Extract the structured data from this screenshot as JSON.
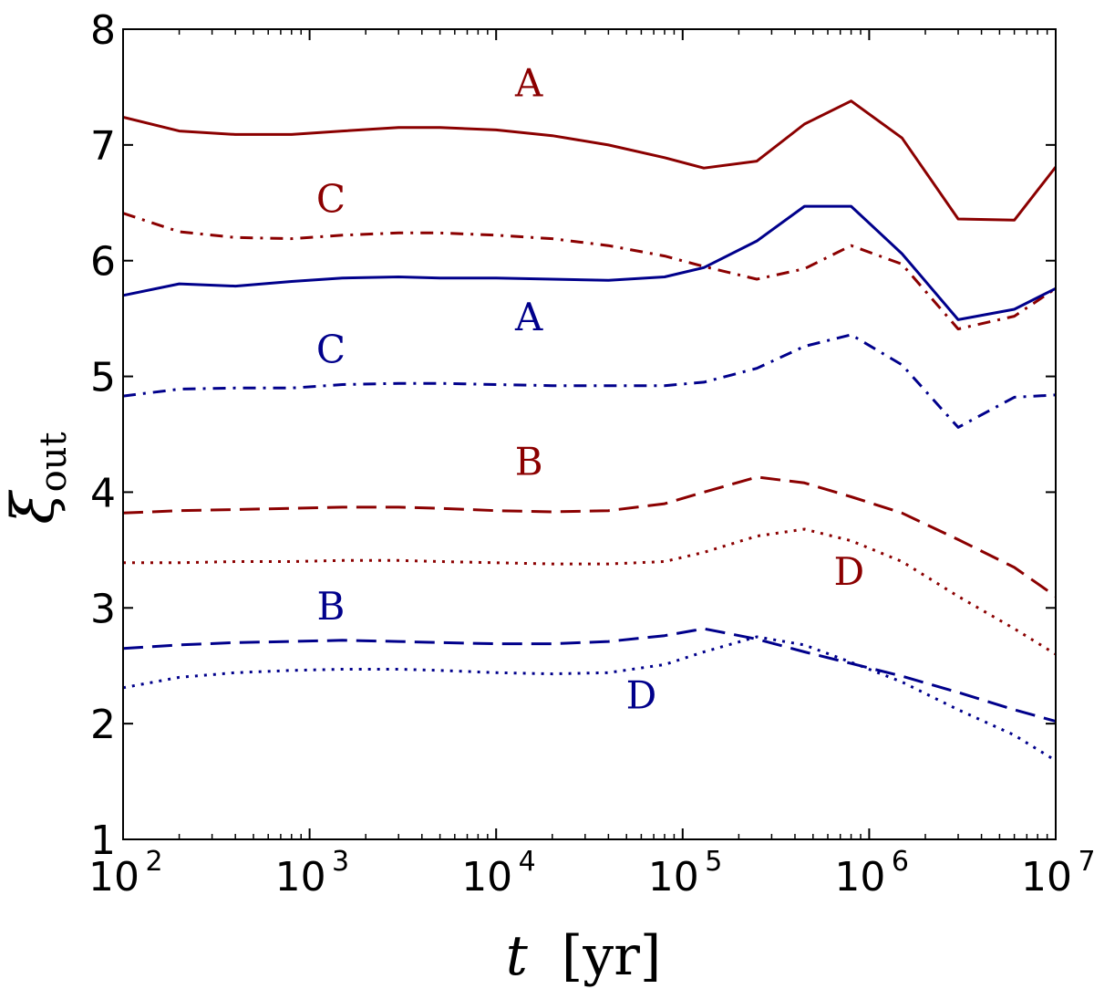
{
  "chart_data": {
    "type": "line",
    "xscale": "log",
    "xlim": [
      100,
      10000000
    ],
    "ylim": [
      1,
      8
    ],
    "xlabel": "t [yr]",
    "xlabel_var": "t",
    "xlabel_unit": "[yr]",
    "ylabel": "ξ_out",
    "ylabel_symbol": "ξ",
    "ylabel_sub": "out",
    "x_ticks": [
      {
        "value": 100,
        "base": "10",
        "exp": "2"
      },
      {
        "value": 1000,
        "base": "10",
        "exp": "3"
      },
      {
        "value": 10000,
        "base": "10",
        "exp": "4"
      },
      {
        "value": 100000,
        "base": "10",
        "exp": "5"
      },
      {
        "value": 1000000,
        "base": "10",
        "exp": "6"
      },
      {
        "value": 10000000,
        "base": "10",
        "exp": "7"
      }
    ],
    "y_ticks": [
      {
        "value": 1,
        "label": "1"
      },
      {
        "value": 2,
        "label": "2"
      },
      {
        "value": 3,
        "label": "3"
      },
      {
        "value": 4,
        "label": "4"
      },
      {
        "value": 5,
        "label": "5"
      },
      {
        "value": 6,
        "label": "6"
      },
      {
        "value": 7,
        "label": "7"
      },
      {
        "value": 8,
        "label": "8"
      }
    ],
    "colors": {
      "red": "#8b0000",
      "blue": "#00008b"
    },
    "series": [
      {
        "name": "A-red",
        "label": "A",
        "color": "red",
        "style": "solid",
        "x": [
          100,
          200,
          400,
          800,
          1500,
          3000,
          5000,
          10000,
          20000,
          40000,
          80000,
          130000,
          250000,
          450000,
          800000,
          1500000,
          3000000,
          6000000,
          10000000
        ],
        "y": [
          7.24,
          7.12,
          7.09,
          7.09,
          7.12,
          7.15,
          7.15,
          7.13,
          7.08,
          7.0,
          6.89,
          6.8,
          6.86,
          7.18,
          7.38,
          7.06,
          6.36,
          6.35,
          6.81
        ]
      },
      {
        "name": "C-red",
        "label": "C",
        "color": "red",
        "style": "dashdot",
        "x": [
          100,
          200,
          400,
          800,
          1500,
          3000,
          5000,
          10000,
          20000,
          40000,
          80000,
          130000,
          250000,
          450000,
          800000,
          1500000,
          3000000,
          6000000,
          10000000
        ],
        "y": [
          6.41,
          6.25,
          6.2,
          6.19,
          6.22,
          6.24,
          6.24,
          6.22,
          6.19,
          6.13,
          6.04,
          5.95,
          5.84,
          5.93,
          6.13,
          5.97,
          5.41,
          5.52,
          5.76
        ]
      },
      {
        "name": "A-blue",
        "label": "A",
        "color": "blue",
        "style": "solid",
        "x": [
          100,
          200,
          400,
          800,
          1500,
          3000,
          5000,
          10000,
          20000,
          40000,
          80000,
          130000,
          250000,
          450000,
          800000,
          1500000,
          3000000,
          6000000,
          10000000
        ],
        "y": [
          5.7,
          5.8,
          5.78,
          5.82,
          5.85,
          5.86,
          5.85,
          5.85,
          5.84,
          5.83,
          5.86,
          5.94,
          6.17,
          6.47,
          6.47,
          6.06,
          5.49,
          5.58,
          5.76
        ]
      },
      {
        "name": "C-blue",
        "label": "C",
        "color": "blue",
        "style": "dashdot",
        "x": [
          100,
          200,
          400,
          800,
          1500,
          3000,
          5000,
          10000,
          20000,
          40000,
          80000,
          130000,
          250000,
          450000,
          800000,
          1500000,
          3000000,
          6000000,
          10000000
        ],
        "y": [
          4.83,
          4.89,
          4.9,
          4.9,
          4.93,
          4.94,
          4.94,
          4.93,
          4.92,
          4.92,
          4.92,
          4.95,
          5.07,
          5.26,
          5.36,
          5.1,
          4.56,
          4.82,
          4.84
        ]
      },
      {
        "name": "B-red",
        "label": "B",
        "color": "red",
        "style": "dashed",
        "x": [
          100,
          200,
          400,
          800,
          1500,
          3000,
          5000,
          10000,
          20000,
          40000,
          80000,
          130000,
          250000,
          450000,
          800000,
          1500000,
          3000000,
          6000000,
          10000000
        ],
        "y": [
          3.82,
          3.84,
          3.85,
          3.86,
          3.87,
          3.87,
          3.86,
          3.84,
          3.83,
          3.84,
          3.9,
          4.0,
          4.13,
          4.08,
          3.96,
          3.82,
          3.59,
          3.35,
          3.1
        ]
      },
      {
        "name": "D-red",
        "label": "D",
        "color": "red",
        "style": "dotted",
        "x": [
          100,
          200,
          400,
          800,
          1500,
          3000,
          5000,
          10000,
          20000,
          40000,
          80000,
          130000,
          250000,
          450000,
          800000,
          1500000,
          3000000,
          6000000,
          10000000
        ],
        "y": [
          3.39,
          3.39,
          3.4,
          3.4,
          3.41,
          3.41,
          3.4,
          3.39,
          3.38,
          3.38,
          3.4,
          3.48,
          3.62,
          3.68,
          3.58,
          3.4,
          3.1,
          2.82,
          2.6
        ]
      },
      {
        "name": "B-blue",
        "label": "B",
        "color": "blue",
        "style": "dashed",
        "x": [
          100,
          200,
          400,
          800,
          1500,
          3000,
          5000,
          10000,
          20000,
          40000,
          80000,
          130000,
          250000,
          450000,
          800000,
          1500000,
          3000000,
          6000000,
          10000000
        ],
        "y": [
          2.65,
          2.68,
          2.7,
          2.71,
          2.72,
          2.71,
          2.7,
          2.69,
          2.69,
          2.71,
          2.76,
          2.82,
          2.73,
          2.62,
          2.52,
          2.41,
          2.27,
          2.12,
          2.02
        ]
      },
      {
        "name": "D-blue",
        "label": "D",
        "color": "blue",
        "style": "dotted",
        "x": [
          100,
          200,
          400,
          800,
          1500,
          3000,
          5000,
          10000,
          20000,
          40000,
          80000,
          130000,
          250000,
          450000,
          800000,
          1500000,
          3000000,
          6000000,
          10000000
        ],
        "y": [
          2.31,
          2.4,
          2.44,
          2.46,
          2.47,
          2.47,
          2.46,
          2.44,
          2.43,
          2.44,
          2.51,
          2.62,
          2.75,
          2.68,
          2.53,
          2.36,
          2.12,
          1.9,
          1.68
        ]
      }
    ],
    "annotations": [
      {
        "name": "label-A-red",
        "text": "A",
        "color": "red",
        "x": 15000,
        "y": 7.42
      },
      {
        "name": "label-C-red",
        "text": "C",
        "color": "red",
        "x": 1300,
        "y": 6.42
      },
      {
        "name": "label-A-blue",
        "text": "A",
        "color": "blue",
        "x": 15000,
        "y": 5.4
      },
      {
        "name": "label-C-blue",
        "text": "C",
        "color": "blue",
        "x": 1300,
        "y": 5.12
      },
      {
        "name": "label-B-red",
        "text": "B",
        "color": "red",
        "x": 15000,
        "y": 4.15
      },
      {
        "name": "label-D-red",
        "text": "D",
        "color": "red",
        "x": 780000,
        "y": 3.2
      },
      {
        "name": "label-B-blue",
        "text": "B",
        "color": "blue",
        "x": 1300,
        "y": 2.9
      },
      {
        "name": "label-D-blue",
        "text": "D",
        "color": "blue",
        "x": 60000,
        "y": 2.13
      }
    ]
  }
}
